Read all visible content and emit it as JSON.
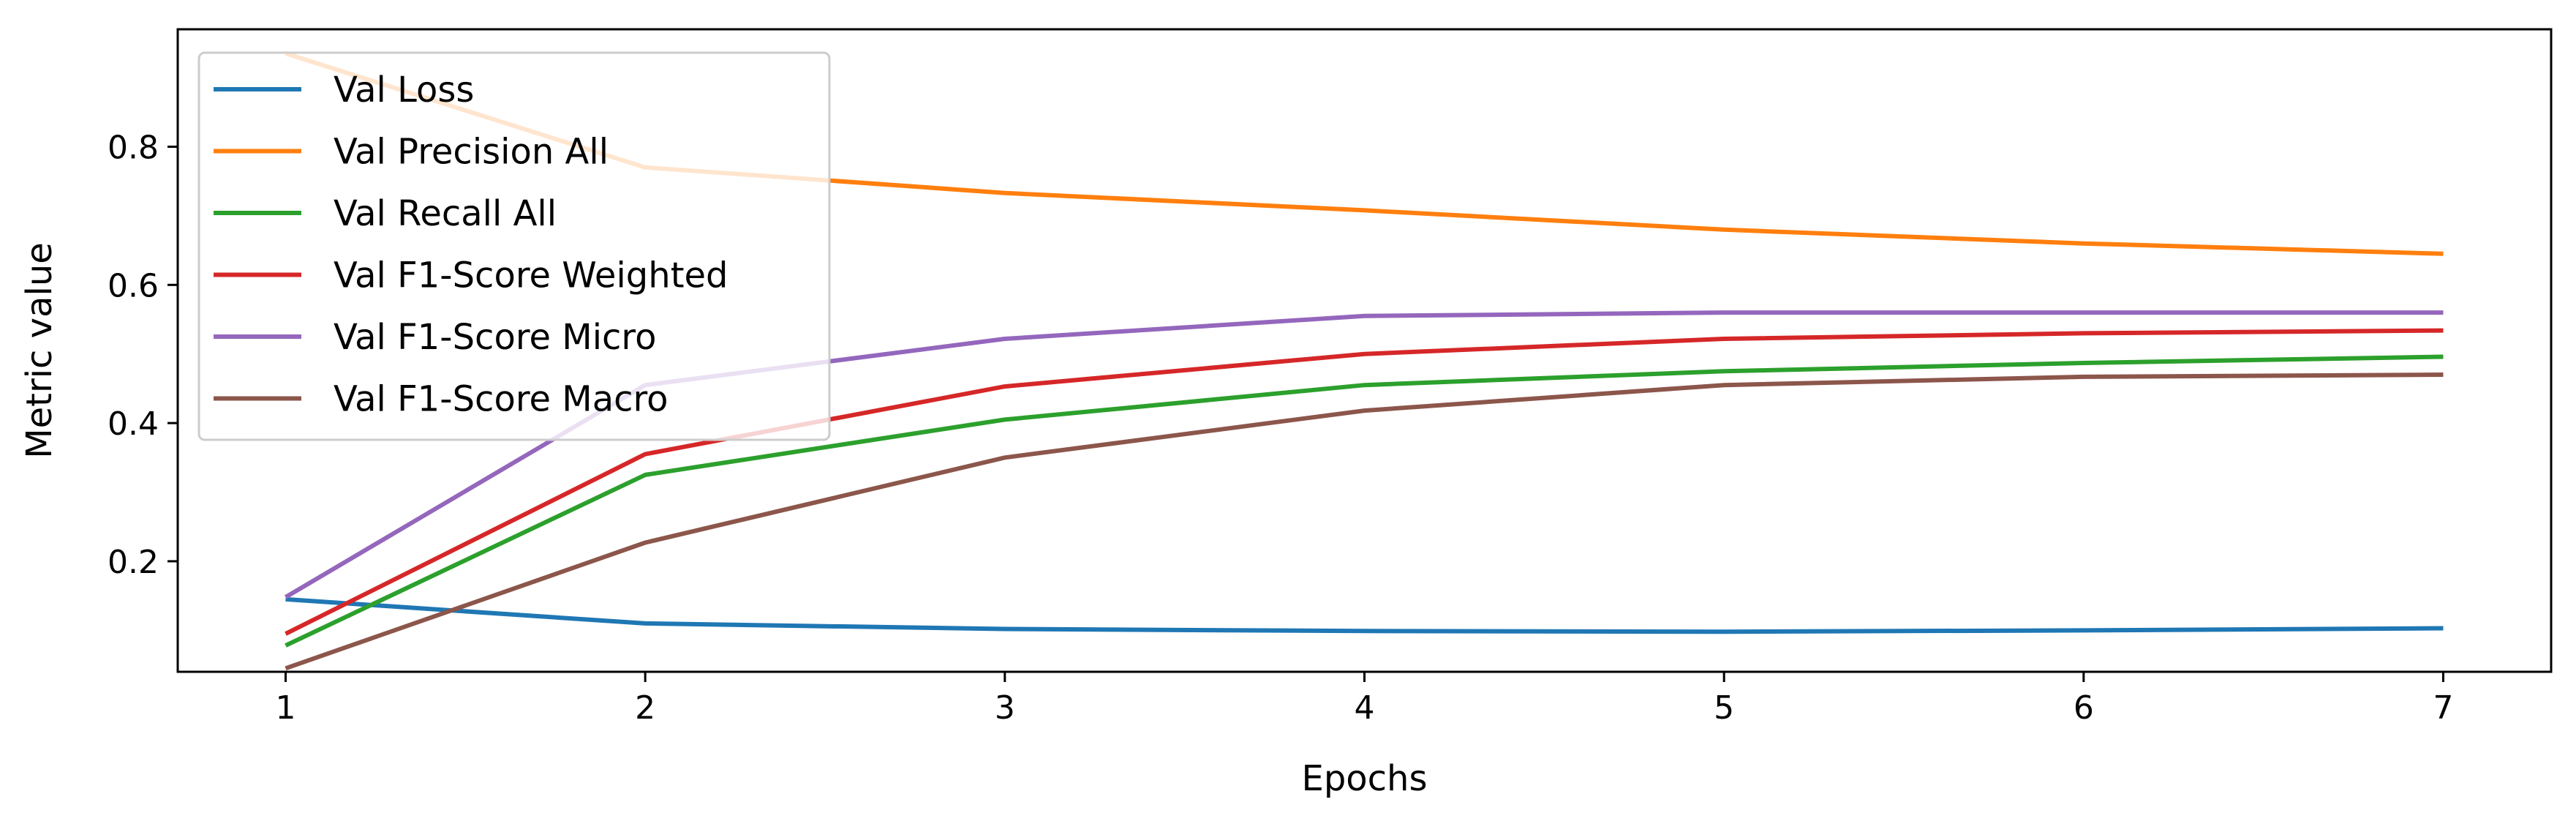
{
  "chart_data": {
    "type": "line",
    "title": "",
    "xlabel": "Epochs",
    "ylabel": "Metric value",
    "x": [
      1,
      2,
      3,
      4,
      5,
      6,
      7
    ],
    "xlim": [
      0.7,
      7.3
    ],
    "ylim": [
      0.04,
      0.97
    ],
    "xticks": [
      1,
      2,
      3,
      4,
      5,
      6,
      7
    ],
    "yticks": [
      0.2,
      0.4,
      0.6,
      0.8
    ],
    "ytick_labels": [
      "0.2",
      "0.4",
      "0.6",
      "0.8"
    ],
    "grid": false,
    "legend_position": "upper-left",
    "series": [
      {
        "name": "Val Loss",
        "color": "#1f77b4",
        "values": [
          0.145,
          0.11,
          0.102,
          0.099,
          0.098,
          0.1,
          0.103
        ]
      },
      {
        "name": "Val Precision All",
        "color": "#ff7f0e",
        "values": [
          0.935,
          0.77,
          0.733,
          0.708,
          0.68,
          0.66,
          0.645
        ]
      },
      {
        "name": "Val Recall All",
        "color": "#2ca02c",
        "values": [
          0.078,
          0.325,
          0.405,
          0.455,
          0.475,
          0.487,
          0.496
        ]
      },
      {
        "name": "Val F1-Score Weighted",
        "color": "#d62728",
        "values": [
          0.095,
          0.355,
          0.453,
          0.5,
          0.522,
          0.53,
          0.534
        ]
      },
      {
        "name": "Val F1-Score Micro",
        "color": "#9467bd",
        "values": [
          0.148,
          0.455,
          0.522,
          0.555,
          0.56,
          0.56,
          0.56
        ]
      },
      {
        "name": "Val F1-Score Macro",
        "color": "#8c564b",
        "values": [
          0.045,
          0.227,
          0.35,
          0.418,
          0.455,
          0.467,
          0.47
        ]
      }
    ]
  }
}
